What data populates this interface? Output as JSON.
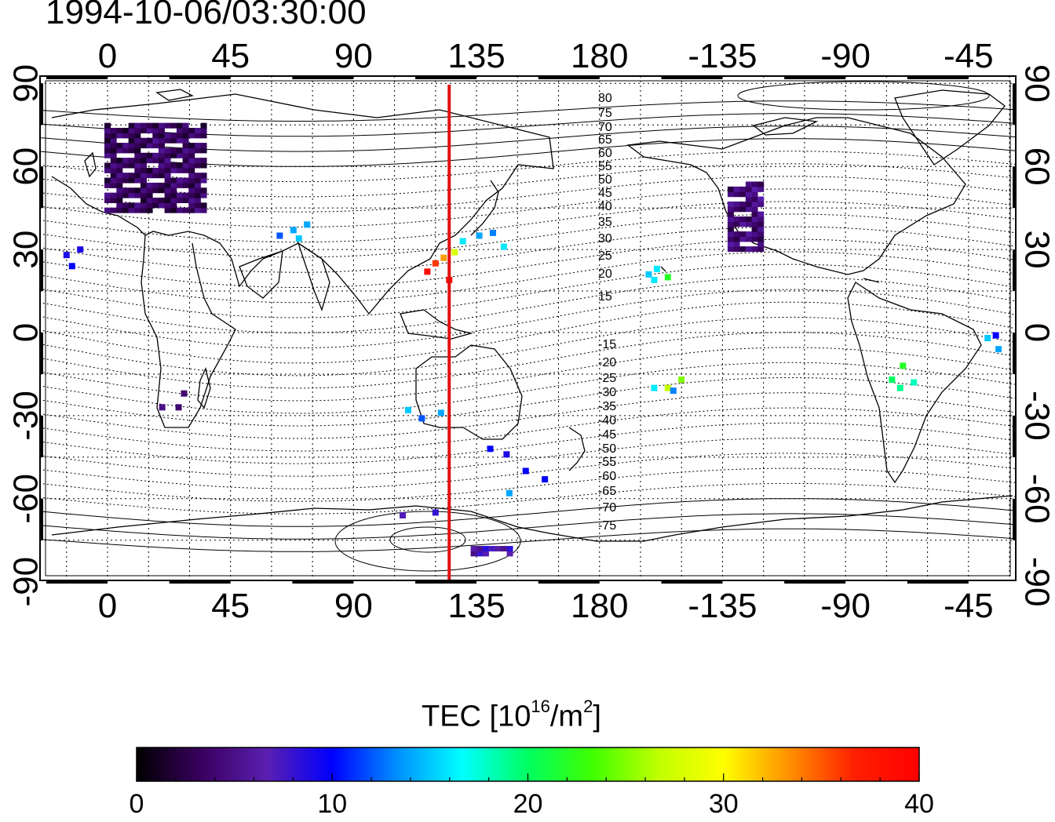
{
  "title": "1994-10-06/03:30:00",
  "colorbar": {
    "label_main": "TEC  [10",
    "label_exp": "16",
    "label_mid": "/m",
    "label_exp2": "2",
    "label_end": "]",
    "min": 0,
    "max": 40,
    "ticks": [
      "0",
      "10",
      "20",
      "30",
      "40"
    ],
    "colors": [
      "#000000",
      "#3a0060",
      "#5a1fb0",
      "#0000ff",
      "#0090ff",
      "#00ffff",
      "#00ff60",
      "#40ff00",
      "#c0ff00",
      "#ffff00",
      "#ff9000",
      "#ff2000",
      "#ff0000"
    ]
  },
  "map": {
    "lon_ticks": [
      "0",
      "45",
      "90",
      "135",
      "180",
      "-135",
      "-90",
      "-45"
    ],
    "lat_ticks_left": [
      "90",
      "60",
      "30",
      "0",
      "-30",
      "-60",
      "-90"
    ],
    "lat_ticks_right": [
      "90",
      "60",
      "30",
      "0",
      "-30",
      "-60",
      "-90"
    ],
    "meridian_line_lon": 125,
    "meridian_line_color": "#e01010",
    "contour_labels": [
      "80",
      "75",
      "70",
      "65",
      "60",
      "55",
      "50",
      "45",
      "40",
      "35",
      "30",
      "25",
      "20",
      "15",
      "-15",
      "-20",
      "-25",
      "-30",
      "-35",
      "-40",
      "-45",
      "-50",
      "-55",
      "-60",
      "-65",
      "-70",
      "-75"
    ]
  },
  "chart_data": {
    "type": "heatmap",
    "title": "1994-10-06/03:30:00",
    "xlabel": "",
    "ylabel": "",
    "xlim": [
      -20,
      340
    ],
    "ylim": [
      -90,
      90
    ],
    "value_range": [
      0,
      40
    ],
    "points": [
      {
        "lon": -15,
        "lat": 28,
        "tec": 9
      },
      {
        "lon": -13,
        "lat": 24,
        "tec": 10
      },
      {
        "lon": -10,
        "lat": 30,
        "tec": 9
      },
      {
        "lon": 63,
        "lat": 35,
        "tec": 12
      },
      {
        "lon": 68,
        "lat": 37,
        "tec": 14
      },
      {
        "lon": 70,
        "lat": 34,
        "tec": 15
      },
      {
        "lon": 73,
        "lat": 39,
        "tec": 14
      },
      {
        "lon": 117,
        "lat": 22,
        "tec": 39
      },
      {
        "lon": 120,
        "lat": 25,
        "tec": 36
      },
      {
        "lon": 123,
        "lat": 27,
        "tec": 33
      },
      {
        "lon": 127,
        "lat": 29,
        "tec": 28
      },
      {
        "lon": 125,
        "lat": 19,
        "tec": 39
      },
      {
        "lon": 130,
        "lat": 33,
        "tec": 16
      },
      {
        "lon": 136,
        "lat": 35,
        "tec": 14
      },
      {
        "lon": 141,
        "lat": 36,
        "tec": 13
      },
      {
        "lon": 145,
        "lat": 31,
        "tec": 16
      },
      {
        "lon": 110,
        "lat": -28,
        "tec": 15
      },
      {
        "lon": 115,
        "lat": -31,
        "tec": 12
      },
      {
        "lon": 122,
        "lat": -29,
        "tec": 14
      },
      {
        "lon": 140,
        "lat": -42,
        "tec": 10
      },
      {
        "lon": 146,
        "lat": -44,
        "tec": 9
      },
      {
        "lon": 153,
        "lat": -50,
        "tec": 10
      },
      {
        "lon": 160,
        "lat": -53,
        "tec": 10
      },
      {
        "lon": 147,
        "lat": -58,
        "tec": 14
      },
      {
        "lon": 108,
        "lat": -66,
        "tec": 7
      },
      {
        "lon": 120,
        "lat": -65,
        "tec": 8
      },
      {
        "lon": 20,
        "lat": -27,
        "tec": 5
      },
      {
        "lon": 26,
        "lat": -27,
        "tec": 4
      },
      {
        "lon": 28,
        "lat": -22,
        "tec": 4
      },
      {
        "lon": 198,
        "lat": 21,
        "tec": 15
      },
      {
        "lon": 201,
        "lat": 23,
        "tec": 16
      },
      {
        "lon": 205,
        "lat": 20,
        "tec": 22
      },
      {
        "lon": 200,
        "lat": 19,
        "tec": 16
      },
      {
        "lon": 205,
        "lat": -20,
        "tec": 27
      },
      {
        "lon": 210,
        "lat": -17,
        "tec": 25
      },
      {
        "lon": 207,
        "lat": -21,
        "tec": 13
      },
      {
        "lon": 200,
        "lat": -20,
        "tec": 16
      },
      {
        "lon": 287,
        "lat": -17,
        "tec": 20
      },
      {
        "lon": 291,
        "lat": -12,
        "tec": 22
      },
      {
        "lon": 290,
        "lat": -20,
        "tec": 19
      },
      {
        "lon": 295,
        "lat": -18,
        "tec": 18
      },
      {
        "lon": 322,
        "lat": -2,
        "tec": 15
      },
      {
        "lon": 326,
        "lat": -6,
        "tec": 14
      },
      {
        "lon": 325,
        "lat": -1,
        "tec": 10
      }
    ],
    "regions": [
      {
        "name": "europe",
        "lon": [
          0,
          36
        ],
        "lat": [
          44,
          76
        ],
        "tec": 3
      },
      {
        "name": "north-america",
        "lon": [
          228,
          240
        ],
        "lat": [
          30,
          55
        ],
        "tec": 4
      },
      {
        "name": "antarctica-south",
        "lon": [
          134,
          148
        ],
        "lat": [
          -80,
          -77
        ],
        "tec": 6
      }
    ]
  }
}
